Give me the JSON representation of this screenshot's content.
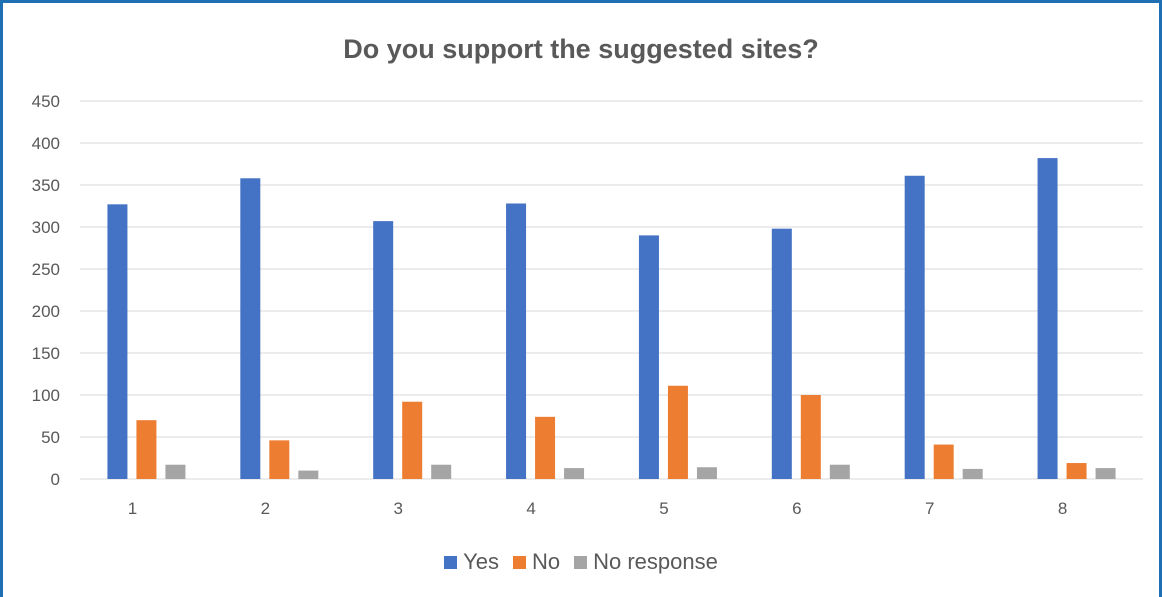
{
  "chart_data": {
    "type": "bar",
    "title": "Do you support the suggested sites?",
    "xlabel": "",
    "ylabel": "",
    "categories": [
      "1",
      "2",
      "3",
      "4",
      "5",
      "6",
      "7",
      "8"
    ],
    "series": [
      {
        "name": "Yes",
        "color": "#4472C4",
        "values": [
          327,
          358,
          307,
          328,
          290,
          298,
          361,
          382
        ]
      },
      {
        "name": "No",
        "color": "#ED7D31",
        "values": [
          70,
          46,
          92,
          74,
          111,
          100,
          41,
          19
        ]
      },
      {
        "name": "No response",
        "color": "#A5A5A5",
        "values": [
          17,
          10,
          17,
          13,
          14,
          17,
          12,
          13
        ]
      }
    ],
    "ylim": [
      0,
      450
    ],
    "yticks": [
      0,
      50,
      100,
      150,
      200,
      250,
      300,
      350,
      400,
      450
    ],
    "grid": true,
    "legend_position": "bottom"
  }
}
